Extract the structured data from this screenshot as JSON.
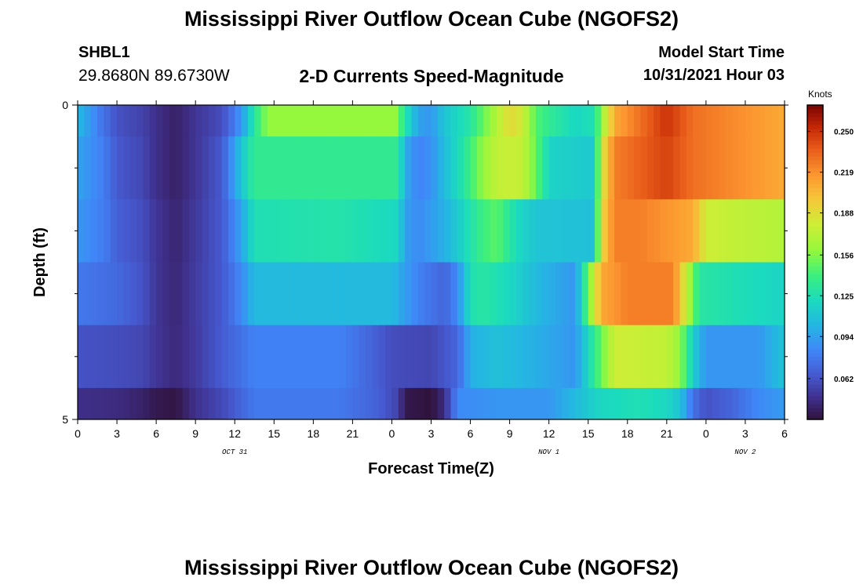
{
  "header": {
    "title": "Mississippi River Outflow Ocean Cube (NGOFS2)",
    "station_id": "SHBL1",
    "coordinates": "29.8680N  89.6730W",
    "subtitle": "2-D Currents Speed-Magnitude",
    "model_start_label": "Model Start Time",
    "model_start_value": "10/31/2021 Hour 03"
  },
  "footer": {
    "title": "Mississippi River Outflow Ocean Cube (NGOFS2)"
  },
  "chart_data": {
    "type": "heatmap",
    "title": "2-D Currents Speed-Magnitude",
    "xlabel": "Forecast Time(Z)",
    "ylabel": "Depth (ft)",
    "colorbar_label": "Knots",
    "colorbar_ticks": [
      "0.250",
      "0.219",
      "0.188",
      "0.156",
      "0.125",
      "0.094",
      "0.062"
    ],
    "colorbar_tick_values": [
      0.25,
      0.219,
      0.188,
      0.156,
      0.125,
      0.094,
      0.062
    ],
    "color_range": [
      0.031,
      0.27
    ],
    "xlim": [
      0,
      54
    ],
    "ylim": [
      0,
      5
    ],
    "x_tick_values": [
      0,
      3,
      6,
      9,
      12,
      15,
      18,
      21,
      24,
      27,
      30,
      33,
      36,
      39,
      42,
      45,
      48,
      51,
      54
    ],
    "x_tick_labels": [
      "0",
      "3",
      "6",
      "9",
      "12",
      "15",
      "18",
      "21",
      "0",
      "3",
      "6",
      "9",
      "12",
      "15",
      "18",
      "21",
      "0",
      "3",
      "6"
    ],
    "y_tick_values": [
      0,
      5
    ],
    "y_tick_labels": [
      "0",
      "5"
    ],
    "y_minor_ticks": [
      1,
      2,
      3,
      4
    ],
    "date_labels": [
      {
        "text": "OCT 31",
        "x": 12
      },
      {
        "text": "NOV 1",
        "x": 36
      },
      {
        "text": "NOV 2",
        "x": 51
      }
    ],
    "rows": [
      {
        "depth_range": [
          0,
          0.5
        ],
        "keyframes": [
          [
            0,
            0.105
          ],
          [
            1,
            0.09
          ],
          [
            2,
            0.075
          ],
          [
            3,
            0.062
          ],
          [
            5,
            0.055
          ],
          [
            6,
            0.047
          ],
          [
            7.5,
            0.04
          ],
          [
            9,
            0.05
          ],
          [
            11,
            0.06
          ],
          [
            12.5,
            0.09
          ],
          [
            13.5,
            0.13
          ],
          [
            14.5,
            0.16
          ],
          [
            18,
            0.16
          ],
          [
            24.3,
            0.16
          ],
          [
            25,
            0.13
          ],
          [
            26,
            0.095
          ],
          [
            27,
            0.09
          ],
          [
            28,
            0.11
          ],
          [
            30,
            0.13
          ],
          [
            31,
            0.15
          ],
          [
            32,
            0.17
          ],
          [
            33,
            0.19
          ],
          [
            34,
            0.18
          ],
          [
            35,
            0.145
          ],
          [
            36,
            0.135
          ],
          [
            38,
            0.12
          ],
          [
            39.5,
            0.125
          ],
          [
            40,
            0.16
          ],
          [
            41,
            0.21
          ],
          [
            43,
            0.23
          ],
          [
            45,
            0.25
          ],
          [
            47,
            0.23
          ],
          [
            54,
            0.21
          ]
        ]
      },
      {
        "depth_range": [
          0.5,
          1.5
        ],
        "keyframes": [
          [
            0,
            0.095
          ],
          [
            2,
            0.08
          ],
          [
            3,
            0.065
          ],
          [
            5,
            0.057
          ],
          [
            6,
            0.047
          ],
          [
            7.5,
            0.04
          ],
          [
            9,
            0.05
          ],
          [
            11,
            0.065
          ],
          [
            12.5,
            0.11
          ],
          [
            13.5,
            0.135
          ],
          [
            24.5,
            0.135
          ],
          [
            25,
            0.1
          ],
          [
            26,
            0.082
          ],
          [
            27,
            0.088
          ],
          [
            28,
            0.105
          ],
          [
            29.5,
            0.13
          ],
          [
            31,
            0.16
          ],
          [
            32,
            0.175
          ],
          [
            33,
            0.178
          ],
          [
            34,
            0.175
          ],
          [
            35,
            0.15
          ],
          [
            36,
            0.118
          ],
          [
            39.5,
            0.112
          ],
          [
            40,
            0.18
          ],
          [
            41,
            0.225
          ],
          [
            43,
            0.235
          ],
          [
            45,
            0.245
          ],
          [
            47,
            0.23
          ],
          [
            54,
            0.21
          ]
        ]
      },
      {
        "depth_range": [
          1.5,
          2.5
        ],
        "keyframes": [
          [
            0,
            0.09
          ],
          [
            2,
            0.08
          ],
          [
            3,
            0.068
          ],
          [
            5,
            0.06
          ],
          [
            6,
            0.05
          ],
          [
            7.5,
            0.042
          ],
          [
            9,
            0.052
          ],
          [
            11,
            0.065
          ],
          [
            12.5,
            0.095
          ],
          [
            13.5,
            0.125
          ],
          [
            20,
            0.128
          ],
          [
            24.5,
            0.12
          ],
          [
            25,
            0.095
          ],
          [
            26,
            0.085
          ],
          [
            28,
            0.1
          ],
          [
            29.5,
            0.12
          ],
          [
            31,
            0.14
          ],
          [
            32,
            0.148
          ],
          [
            33,
            0.13
          ],
          [
            34,
            0.118
          ],
          [
            35,
            0.11
          ],
          [
            39.5,
            0.108
          ],
          [
            40,
            0.19
          ],
          [
            41,
            0.225
          ],
          [
            43,
            0.225
          ],
          [
            47,
            0.21
          ],
          [
            48,
            0.18
          ],
          [
            50,
            0.175
          ],
          [
            54,
            0.17
          ]
        ]
      },
      {
        "depth_range": [
          2.5,
          3.5
        ],
        "keyframes": [
          [
            0,
            0.078
          ],
          [
            3,
            0.072
          ],
          [
            5,
            0.062
          ],
          [
            6,
            0.05
          ],
          [
            7.5,
            0.043
          ],
          [
            9,
            0.053
          ],
          [
            11,
            0.065
          ],
          [
            12.5,
            0.085
          ],
          [
            13.5,
            0.105
          ],
          [
            24,
            0.105
          ],
          [
            26,
            0.082
          ],
          [
            28,
            0.07
          ],
          [
            29,
            0.085
          ],
          [
            30,
            0.125
          ],
          [
            31,
            0.13
          ],
          [
            33,
            0.12
          ],
          [
            35,
            0.105
          ],
          [
            38,
            0.09
          ],
          [
            40,
            0.21
          ],
          [
            42,
            0.225
          ],
          [
            45.5,
            0.225
          ],
          [
            46.5,
            0.175
          ],
          [
            47.5,
            0.13
          ],
          [
            54,
            0.118
          ]
        ]
      },
      {
        "depth_range": [
          3.5,
          4.5
        ],
        "keyframes": [
          [
            0,
            0.062
          ],
          [
            3,
            0.06
          ],
          [
            5,
            0.057
          ],
          [
            6,
            0.05
          ],
          [
            7.5,
            0.044
          ],
          [
            9,
            0.052
          ],
          [
            11,
            0.066
          ],
          [
            12.5,
            0.075
          ],
          [
            13.5,
            0.082
          ],
          [
            20,
            0.082
          ],
          [
            22,
            0.072
          ],
          [
            24,
            0.06
          ],
          [
            27,
            0.057
          ],
          [
            29,
            0.07
          ],
          [
            30,
            0.1
          ],
          [
            32,
            0.108
          ],
          [
            35,
            0.1
          ],
          [
            38,
            0.09
          ],
          [
            40,
            0.15
          ],
          [
            41,
            0.18
          ],
          [
            45,
            0.175
          ],
          [
            46,
            0.16
          ],
          [
            47,
            0.115
          ],
          [
            48,
            0.09
          ],
          [
            52,
            0.09
          ],
          [
            54,
            0.11
          ]
        ]
      },
      {
        "depth_range": [
          4.5,
          5
        ],
        "keyframes": [
          [
            0,
            0.047
          ],
          [
            3,
            0.045
          ],
          [
            5,
            0.04
          ],
          [
            6,
            0.035
          ],
          [
            7.5,
            0.033
          ],
          [
            9,
            0.048
          ],
          [
            11,
            0.058
          ],
          [
            12.5,
            0.07
          ],
          [
            13.5,
            0.078
          ],
          [
            20,
            0.078
          ],
          [
            23,
            0.068
          ],
          [
            24.5,
            0.055
          ],
          [
            25,
            0.035
          ],
          [
            27,
            0.031
          ],
          [
            28,
            0.045
          ],
          [
            29,
            0.085
          ],
          [
            32,
            0.09
          ],
          [
            36,
            0.09
          ],
          [
            40,
            0.12
          ],
          [
            43,
            0.125
          ],
          [
            45,
            0.12
          ],
          [
            46,
            0.11
          ],
          [
            47,
            0.075
          ],
          [
            48,
            0.062
          ],
          [
            50,
            0.07
          ],
          [
            52,
            0.085
          ],
          [
            54,
            0.092
          ]
        ]
      }
    ]
  }
}
